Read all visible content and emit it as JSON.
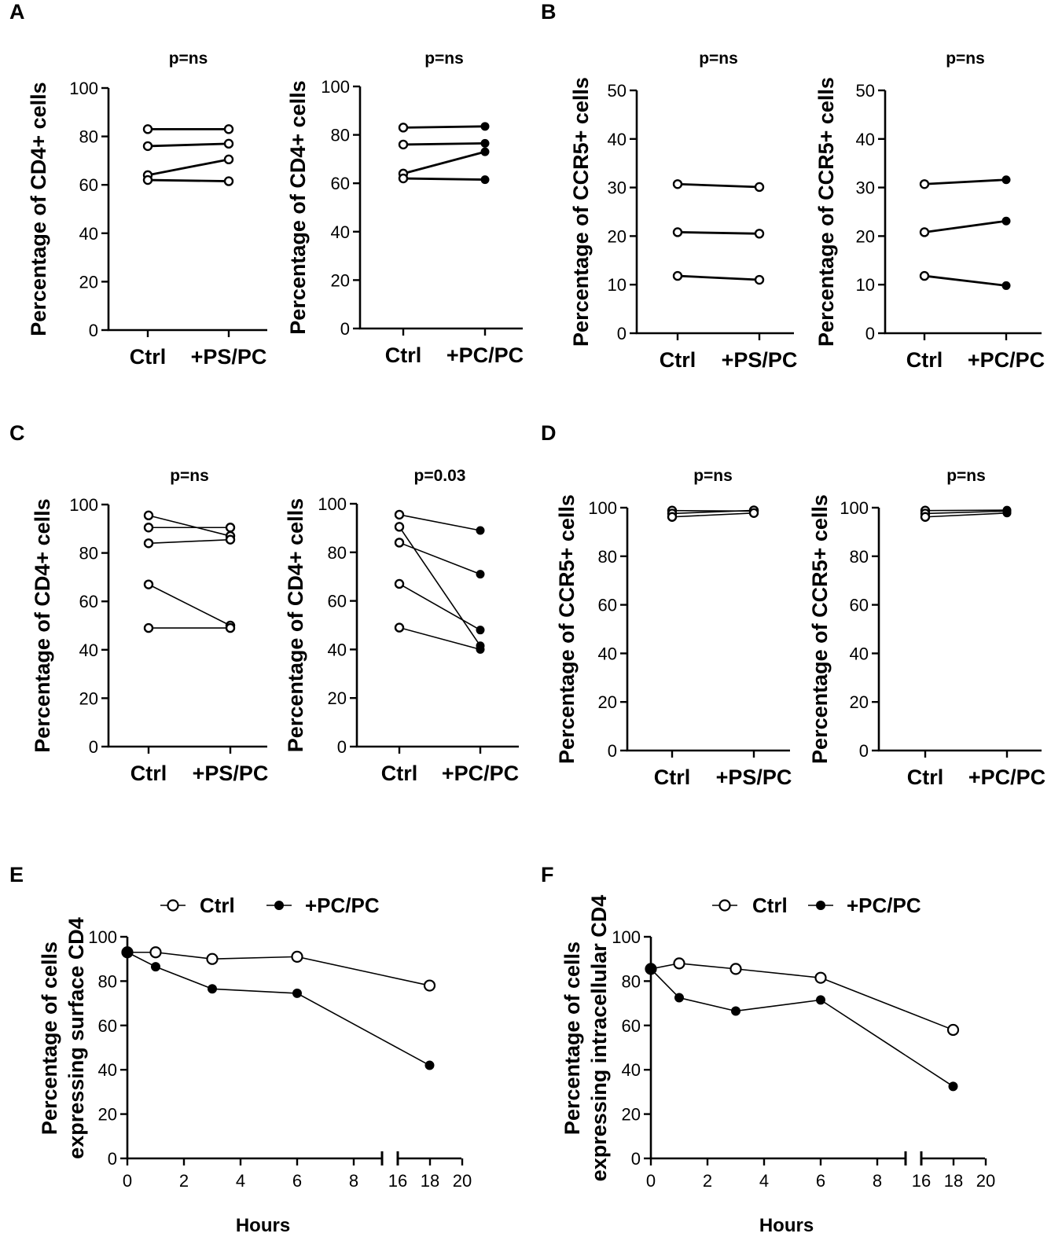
{
  "figure": {
    "panel_labels": [
      "A",
      "B",
      "C",
      "D",
      "E",
      "F"
    ]
  },
  "chart_data": [
    {
      "id": "A1",
      "panel": "A",
      "type": "line",
      "title": "p=ns",
      "ylabel": "Percentage of CD4+ cells",
      "categories": [
        "Ctrl",
        "+PS/PC"
      ],
      "yticks": [
        "0",
        "20",
        "40",
        "60",
        "80",
        "100"
      ],
      "ylim": [
        0,
        100
      ],
      "treated_marker": "open",
      "pairs": [
        [
          83,
          83
        ],
        [
          76,
          77
        ],
        [
          64,
          70.5
        ],
        [
          62,
          61.5
        ]
      ]
    },
    {
      "id": "A2",
      "panel": "A",
      "type": "line",
      "title": "p=ns",
      "ylabel": "Percentage of CD4+ cells",
      "categories": [
        "Ctrl",
        "+PC/PC"
      ],
      "yticks": [
        "0",
        "20",
        "40",
        "60",
        "80",
        "100"
      ],
      "ylim": [
        0,
        100
      ],
      "treated_marker": "filled",
      "pairs": [
        [
          83,
          83.5
        ],
        [
          76,
          76.5
        ],
        [
          64,
          73
        ],
        [
          62,
          61.5
        ]
      ]
    },
    {
      "id": "B1",
      "panel": "B",
      "type": "line",
      "title": "p=ns",
      "ylabel": "Percentage of CCR5+ cells",
      "categories": [
        "Ctrl",
        "+PS/PC"
      ],
      "yticks": [
        "0",
        "10",
        "20",
        "30",
        "40",
        "50"
      ],
      "ylim": [
        0,
        50
      ],
      "treated_marker": "open",
      "pairs": [
        [
          30.7,
          30.1
        ],
        [
          20.8,
          20.5
        ],
        [
          11.8,
          11
        ]
      ]
    },
    {
      "id": "B2",
      "panel": "B",
      "type": "line",
      "title": "p=ns",
      "ylabel": "Percentage of CCR5+ cells",
      "categories": [
        "Ctrl",
        "+PC/PC"
      ],
      "yticks": [
        "0",
        "10",
        "20",
        "30",
        "40",
        "50"
      ],
      "ylim": [
        0,
        50
      ],
      "treated_marker": "filled",
      "pairs": [
        [
          30.7,
          31.6
        ],
        [
          20.8,
          23.1
        ],
        [
          11.8,
          9.8
        ]
      ]
    },
    {
      "id": "C1",
      "panel": "C",
      "type": "line",
      "title": "p=ns",
      "ylabel": "Percentage of CD4+ cells",
      "categories": [
        "Ctrl",
        "+PS/PC"
      ],
      "yticks": [
        "0",
        "20",
        "40",
        "60",
        "80",
        "100"
      ],
      "ylim": [
        0,
        100
      ],
      "treated_marker": "open",
      "pairs": [
        [
          95.5,
          87
        ],
        [
          90.5,
          90.5
        ],
        [
          84,
          85.5
        ],
        [
          67,
          50
        ],
        [
          49,
          49
        ]
      ]
    },
    {
      "id": "C2",
      "panel": "C",
      "type": "line",
      "title": "p=0.03",
      "ylabel": "Percentage of CD4+ cells",
      "categories": [
        "Ctrl",
        "+PC/PC"
      ],
      "yticks": [
        "0",
        "20",
        "40",
        "60",
        "80",
        "100"
      ],
      "ylim": [
        0,
        100
      ],
      "treated_marker": "filled",
      "pairs": [
        [
          95.5,
          89
        ],
        [
          90.5,
          41.5
        ],
        [
          84,
          71
        ],
        [
          67,
          48
        ],
        [
          49,
          40
        ]
      ]
    },
    {
      "id": "D1",
      "panel": "D",
      "type": "line",
      "title": "p=ns",
      "ylabel": "Percentage of CCR5+ cells",
      "categories": [
        "Ctrl",
        "+PS/PC"
      ],
      "yticks": [
        "0",
        "20",
        "40",
        "60",
        "80",
        "100"
      ],
      "ylim": [
        0,
        100
      ],
      "treated_marker": "open",
      "pairs": [
        [
          98.8,
          98.6
        ],
        [
          97.6,
          98.9
        ],
        [
          96.2,
          97.8
        ]
      ]
    },
    {
      "id": "D2",
      "panel": "D",
      "type": "line",
      "title": "p=ns",
      "ylabel": "Percentage of CCR5+ cells",
      "categories": [
        "Ctrl",
        "+PC/PC"
      ],
      "yticks": [
        "0",
        "20",
        "40",
        "60",
        "80",
        "100"
      ],
      "ylim": [
        0,
        100
      ],
      "treated_marker": "filled",
      "pairs": [
        [
          98.8,
          99
        ],
        [
          97.6,
          98.6
        ],
        [
          96.2,
          97.8
        ]
      ]
    },
    {
      "id": "E",
      "panel": "E",
      "type": "line",
      "title": "",
      "ylabel_lines": [
        "Percentage of cells",
        "expressing surface CD4"
      ],
      "xlabel": "Hours",
      "xticks": [
        "0",
        "2",
        "4",
        "6",
        "8",
        "16",
        "18",
        "20"
      ],
      "yticks": [
        "0",
        "20",
        "40",
        "60",
        "80",
        "100"
      ],
      "ylim": [
        0,
        100
      ],
      "broken_x_axis": [
        [
          0,
          9
        ],
        [
          16,
          20
        ]
      ],
      "series": [
        {
          "name": "Ctrl",
          "marker": "open",
          "x": [
            0,
            1,
            3,
            6,
            18
          ],
          "y": [
            93,
            93,
            90,
            91,
            78
          ]
        },
        {
          "name": "+PC/PC",
          "marker": "filled",
          "x": [
            0,
            1,
            3,
            6,
            18
          ],
          "y": [
            93,
            86.5,
            76.5,
            74.5,
            42
          ]
        }
      ]
    },
    {
      "id": "F",
      "panel": "F",
      "type": "line",
      "title": "",
      "ylabel_lines": [
        "Percentage of cells",
        "expressing intracellular CD4"
      ],
      "xlabel": "Hours",
      "xticks": [
        "0",
        "2",
        "4",
        "6",
        "8",
        "16",
        "18",
        "20"
      ],
      "yticks": [
        "0",
        "20",
        "40",
        "60",
        "80",
        "100"
      ],
      "ylim": [
        0,
        100
      ],
      "broken_x_axis": [
        [
          0,
          9
        ],
        [
          16,
          20
        ]
      ],
      "series": [
        {
          "name": "Ctrl",
          "marker": "open",
          "x": [
            0,
            1,
            3,
            6,
            18
          ],
          "y": [
            85.5,
            88,
            85.5,
            81.5,
            58
          ]
        },
        {
          "name": "+PC/PC",
          "marker": "filled",
          "x": [
            0,
            1,
            3,
            6,
            18
          ],
          "y": [
            85.5,
            72.5,
            66.5,
            71.5,
            32.5
          ]
        }
      ]
    }
  ]
}
